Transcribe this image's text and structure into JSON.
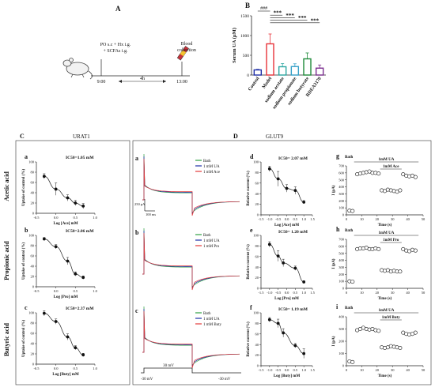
{
  "panel_labels": {
    "A": "A",
    "B": "B",
    "C": "C",
    "D": "D"
  },
  "panel_A": {
    "treatment": "PO s.c + Hx i.g.",
    "treatment2": "+ SCFAs i.g.",
    "outcome": "Blood",
    "outcome2": "collection",
    "t_start": "9:00",
    "t_end": "13:00",
    "duration": "4h"
  },
  "section_titles": {
    "urat1": "URAT1",
    "glut9": "GLUT9"
  },
  "row_labels": [
    "Acetic acid",
    "Propionic acid",
    "Butyric acid"
  ],
  "urat1_sublabels": [
    "a",
    "b",
    "c"
  ],
  "trace_sublabels": [
    "a",
    "b",
    "c"
  ],
  "glut9_sublabels": [
    "d",
    "e",
    "f"
  ],
  "time_sublabels": [
    "g",
    "h",
    "i"
  ],
  "urat1_ylabel": "Uptake of control (%)",
  "urat1_xlabels": [
    "Log [Ace] mM",
    "Log [Pro] mM",
    "Log [Buty] mM"
  ],
  "urat1_ic50": [
    "IC50=1.05 mM",
    "IC50=2.06 mM",
    "IC50=2.37 mM"
  ],
  "glut9_ylabel": "Relative current (%)",
  "glut9_xlabels": [
    "Log [Ace] mM",
    "Log [Pro] mM",
    "Log [Buty] mM"
  ],
  "glut9_ic50": [
    "IC50= 2.07 mM",
    "IC50= 1.20 mM",
    "IC50= 1.19 mM"
  ],
  "trace_legends": [
    [
      "Bath",
      "1 mM UA",
      "1 mM Ace"
    ],
    [
      "Bath",
      "1 mM UA",
      "1 mM Pro"
    ],
    [
      "Bath",
      "1 mM UA",
      "1 mM Buty"
    ]
  ],
  "scale_bar": {
    "current": "250 pA",
    "time": "100 ms"
  },
  "voltage_labels": {
    "hold_left": "-30 mV",
    "step": "30 mV",
    "hold_right": "-30 mV"
  },
  "time_course": {
    "ylabel": "I (pA)",
    "xlabel": "Time (s)",
    "bath": "Bath",
    "ua": "1mM UA",
    "scfa": [
      "1mM Ace",
      "1mM Pro",
      "1mM Buty"
    ]
  },
  "colors": {
    "control": "#1f2fa8",
    "model": "#e8343a",
    "acetate": "#2aa6a0",
    "propionate": "#35a0c8",
    "butyrate": "#1e8a3a",
    "rhea": "#7b2d8e",
    "bath": "#2ea043",
    "ua": "#1f2fa8",
    "scfa": "#e23a3a"
  },
  "chart_data": [
    {
      "type": "bar",
      "panel": "B",
      "categories": [
        "Control",
        "Model",
        "sodium acetate",
        "sodium propionate",
        "sodium butyrate",
        "RDEA3170"
      ],
      "values": [
        130,
        790,
        210,
        215,
        410,
        175
      ],
      "errors": [
        15,
        250,
        80,
        70,
        150,
        80
      ],
      "ylabel": "Serum UA (μM)",
      "ylim": [
        0,
        1500
      ],
      "yticks": [
        0,
        500,
        1000,
        1500
      ],
      "significance": [
        "###",
        "***",
        "***",
        "***",
        "***"
      ]
    },
    {
      "type": "scatter",
      "panel": "Ca",
      "x": [
        -0.3,
        0,
        0.3,
        0.5,
        0.7
      ],
      "y": [
        72,
        47,
        30,
        20,
        14
      ],
      "err": [
        5,
        12,
        6,
        5,
        5
      ],
      "xlim": [
        -0.5,
        1
      ],
      "ylim": [
        0,
        100
      ],
      "xticks": [
        -0.5,
        0,
        0.5,
        1
      ],
      "yticks": [
        0,
        20,
        40,
        60,
        80,
        100
      ]
    },
    {
      "type": "scatter",
      "panel": "Cb",
      "x": [
        -0.3,
        0,
        0.3,
        0.5,
        0.7
      ],
      "y": [
        93,
        78,
        50,
        25,
        18
      ],
      "err": [
        3,
        4,
        7,
        4,
        3
      ],
      "xlim": [
        -0.5,
        1
      ],
      "ylim": [
        0,
        100
      ],
      "xticks": [
        -0.5,
        0,
        0.5,
        1
      ],
      "yticks": [
        0,
        20,
        40,
        60,
        80,
        100
      ]
    },
    {
      "type": "scatter",
      "panel": "Cc",
      "x": [
        -0.3,
        0,
        0.3,
        0.5,
        0.7
      ],
      "y": [
        99,
        83,
        53,
        32,
        18
      ],
      "err": [
        5,
        5,
        6,
        4,
        3
      ],
      "xlim": [
        -0.5,
        1
      ],
      "ylim": [
        0,
        100
      ],
      "xticks": [
        -0.5,
        0,
        0.5,
        1
      ],
      "yticks": [
        0,
        20,
        40,
        60,
        80,
        100
      ]
    },
    {
      "type": "scatter",
      "panel": "Dd",
      "x": [
        -1,
        -0.5,
        0,
        0.5,
        1
      ],
      "y": [
        87,
        68,
        50,
        46,
        24
      ],
      "err": [
        5,
        14,
        7,
        7,
        3
      ],
      "xlim": [
        -1.5,
        1.5
      ],
      "ylim": [
        0,
        100
      ],
      "xticks": [
        -1.5,
        -1,
        -0.5,
        0,
        0.5,
        1,
        1.5
      ],
      "yticks": [
        0,
        20,
        40,
        60,
        80,
        100
      ]
    },
    {
      "type": "scatter",
      "panel": "De",
      "x": [
        -1,
        -0.5,
        -0.2,
        0.5,
        1
      ],
      "y": [
        83,
        61,
        48,
        38,
        12
      ],
      "err": [
        5,
        10,
        7,
        4,
        2
      ],
      "xlim": [
        -1.5,
        1.5
      ],
      "ylim": [
        0,
        100
      ],
      "xticks": [
        -1.5,
        -1,
        -0.5,
        0,
        0.5,
        1,
        1.5
      ],
      "yticks": [
        0,
        20,
        40,
        60,
        80,
        100
      ]
    },
    {
      "type": "scatter",
      "panel": "Df",
      "x": [
        -1,
        -0.5,
        -0.2,
        0.5,
        1
      ],
      "y": [
        87,
        80,
        62,
        38,
        23
      ],
      "err": [
        4,
        8,
        8,
        4,
        9
      ],
      "xlim": [
        -1.5,
        1.5
      ],
      "ylim": [
        0,
        100
      ],
      "xticks": [
        -1.5,
        -1,
        -0.5,
        0,
        0.5,
        1,
        1.5
      ],
      "yticks": [
        0,
        20,
        40,
        60,
        80,
        100
      ]
    },
    {
      "type": "scatter",
      "panel": "Dg",
      "ylim": [
        0,
        700
      ],
      "xlim": [
        0,
        50
      ],
      "yticks": [
        0,
        100,
        200,
        300,
        400,
        500,
        600,
        700
      ],
      "xticks": [
        0,
        10,
        20,
        30,
        40,
        50
      ],
      "x": [
        2,
        4,
        7,
        9,
        11,
        13,
        15,
        17,
        19,
        21,
        23,
        25,
        27,
        29,
        31,
        33,
        35,
        37,
        39,
        41,
        43,
        45
      ],
      "y": [
        60,
        55,
        580,
        590,
        600,
        610,
        620,
        600,
        600,
        590,
        350,
        340,
        360,
        350,
        340,
        330,
        350,
        580,
        560,
        550,
        560,
        540
      ]
    },
    {
      "type": "scatter",
      "panel": "Dh",
      "ylim": [
        0,
        700
      ],
      "xlim": [
        0,
        50
      ],
      "yticks": [
        0,
        100,
        200,
        300,
        400,
        500,
        600,
        700
      ],
      "xticks": [
        0,
        10,
        20,
        30,
        40,
        50
      ],
      "x": [
        2,
        4,
        7,
        9,
        11,
        13,
        15,
        17,
        19,
        21,
        23,
        25,
        27,
        29,
        31,
        33,
        35,
        37,
        39,
        41,
        43,
        45
      ],
      "y": [
        100,
        95,
        560,
        570,
        570,
        580,
        560,
        560,
        570,
        560,
        260,
        250,
        260,
        240,
        250,
        240,
        240,
        560,
        540,
        530,
        550,
        540
      ]
    },
    {
      "type": "scatter",
      "panel": "Di",
      "ylim": [
        0,
        400
      ],
      "xlim": [
        0,
        50
      ],
      "yticks": [
        0,
        100,
        200,
        300,
        400
      ],
      "xticks": [
        0,
        10,
        20,
        30,
        40,
        50
      ],
      "x": [
        2,
        4,
        7,
        9,
        11,
        13,
        15,
        17,
        19,
        21,
        23,
        25,
        27,
        29,
        31,
        33,
        35,
        37,
        39,
        41,
        43,
        45
      ],
      "y": [
        35,
        30,
        290,
        300,
        310,
        300,
        295,
        300,
        290,
        285,
        150,
        145,
        150,
        160,
        155,
        150,
        145,
        270,
        260,
        255,
        260,
        270
      ]
    }
  ]
}
